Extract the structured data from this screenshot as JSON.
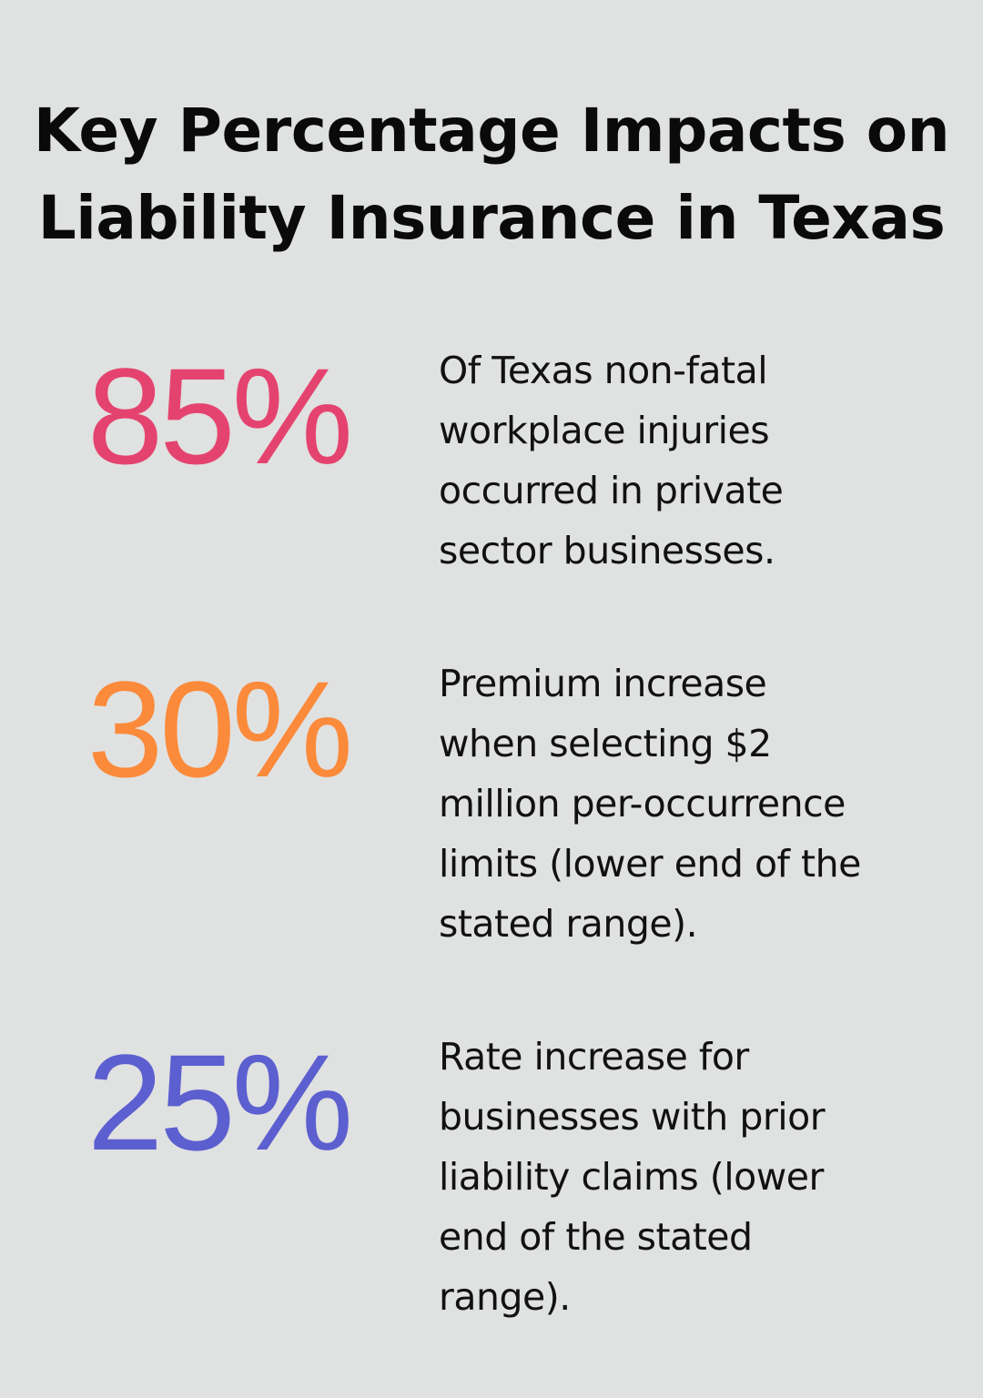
{
  "title": {
    "line1": "Key Percentage Impacts on",
    "line2": "Liability Insurance in Texas"
  },
  "stats": [
    {
      "value": "85%",
      "color": "#e5436f",
      "description_lines": [
        "Of Texas non-fatal",
        "workplace injuries",
        "occurred in private",
        "sector businesses."
      ]
    },
    {
      "value": "30%",
      "color": "#fb8a3a",
      "description_lines": [
        "Premium increase",
        "when selecting $2",
        "million per-occurrence",
        "limits (lower end of the",
        "stated range)."
      ]
    },
    {
      "value": "25%",
      "color": "#5c5fcf",
      "description_lines": [
        "Rate increase for",
        "businesses with prior",
        "liability claims (lower",
        "end of the stated",
        "range)."
      ]
    }
  ]
}
